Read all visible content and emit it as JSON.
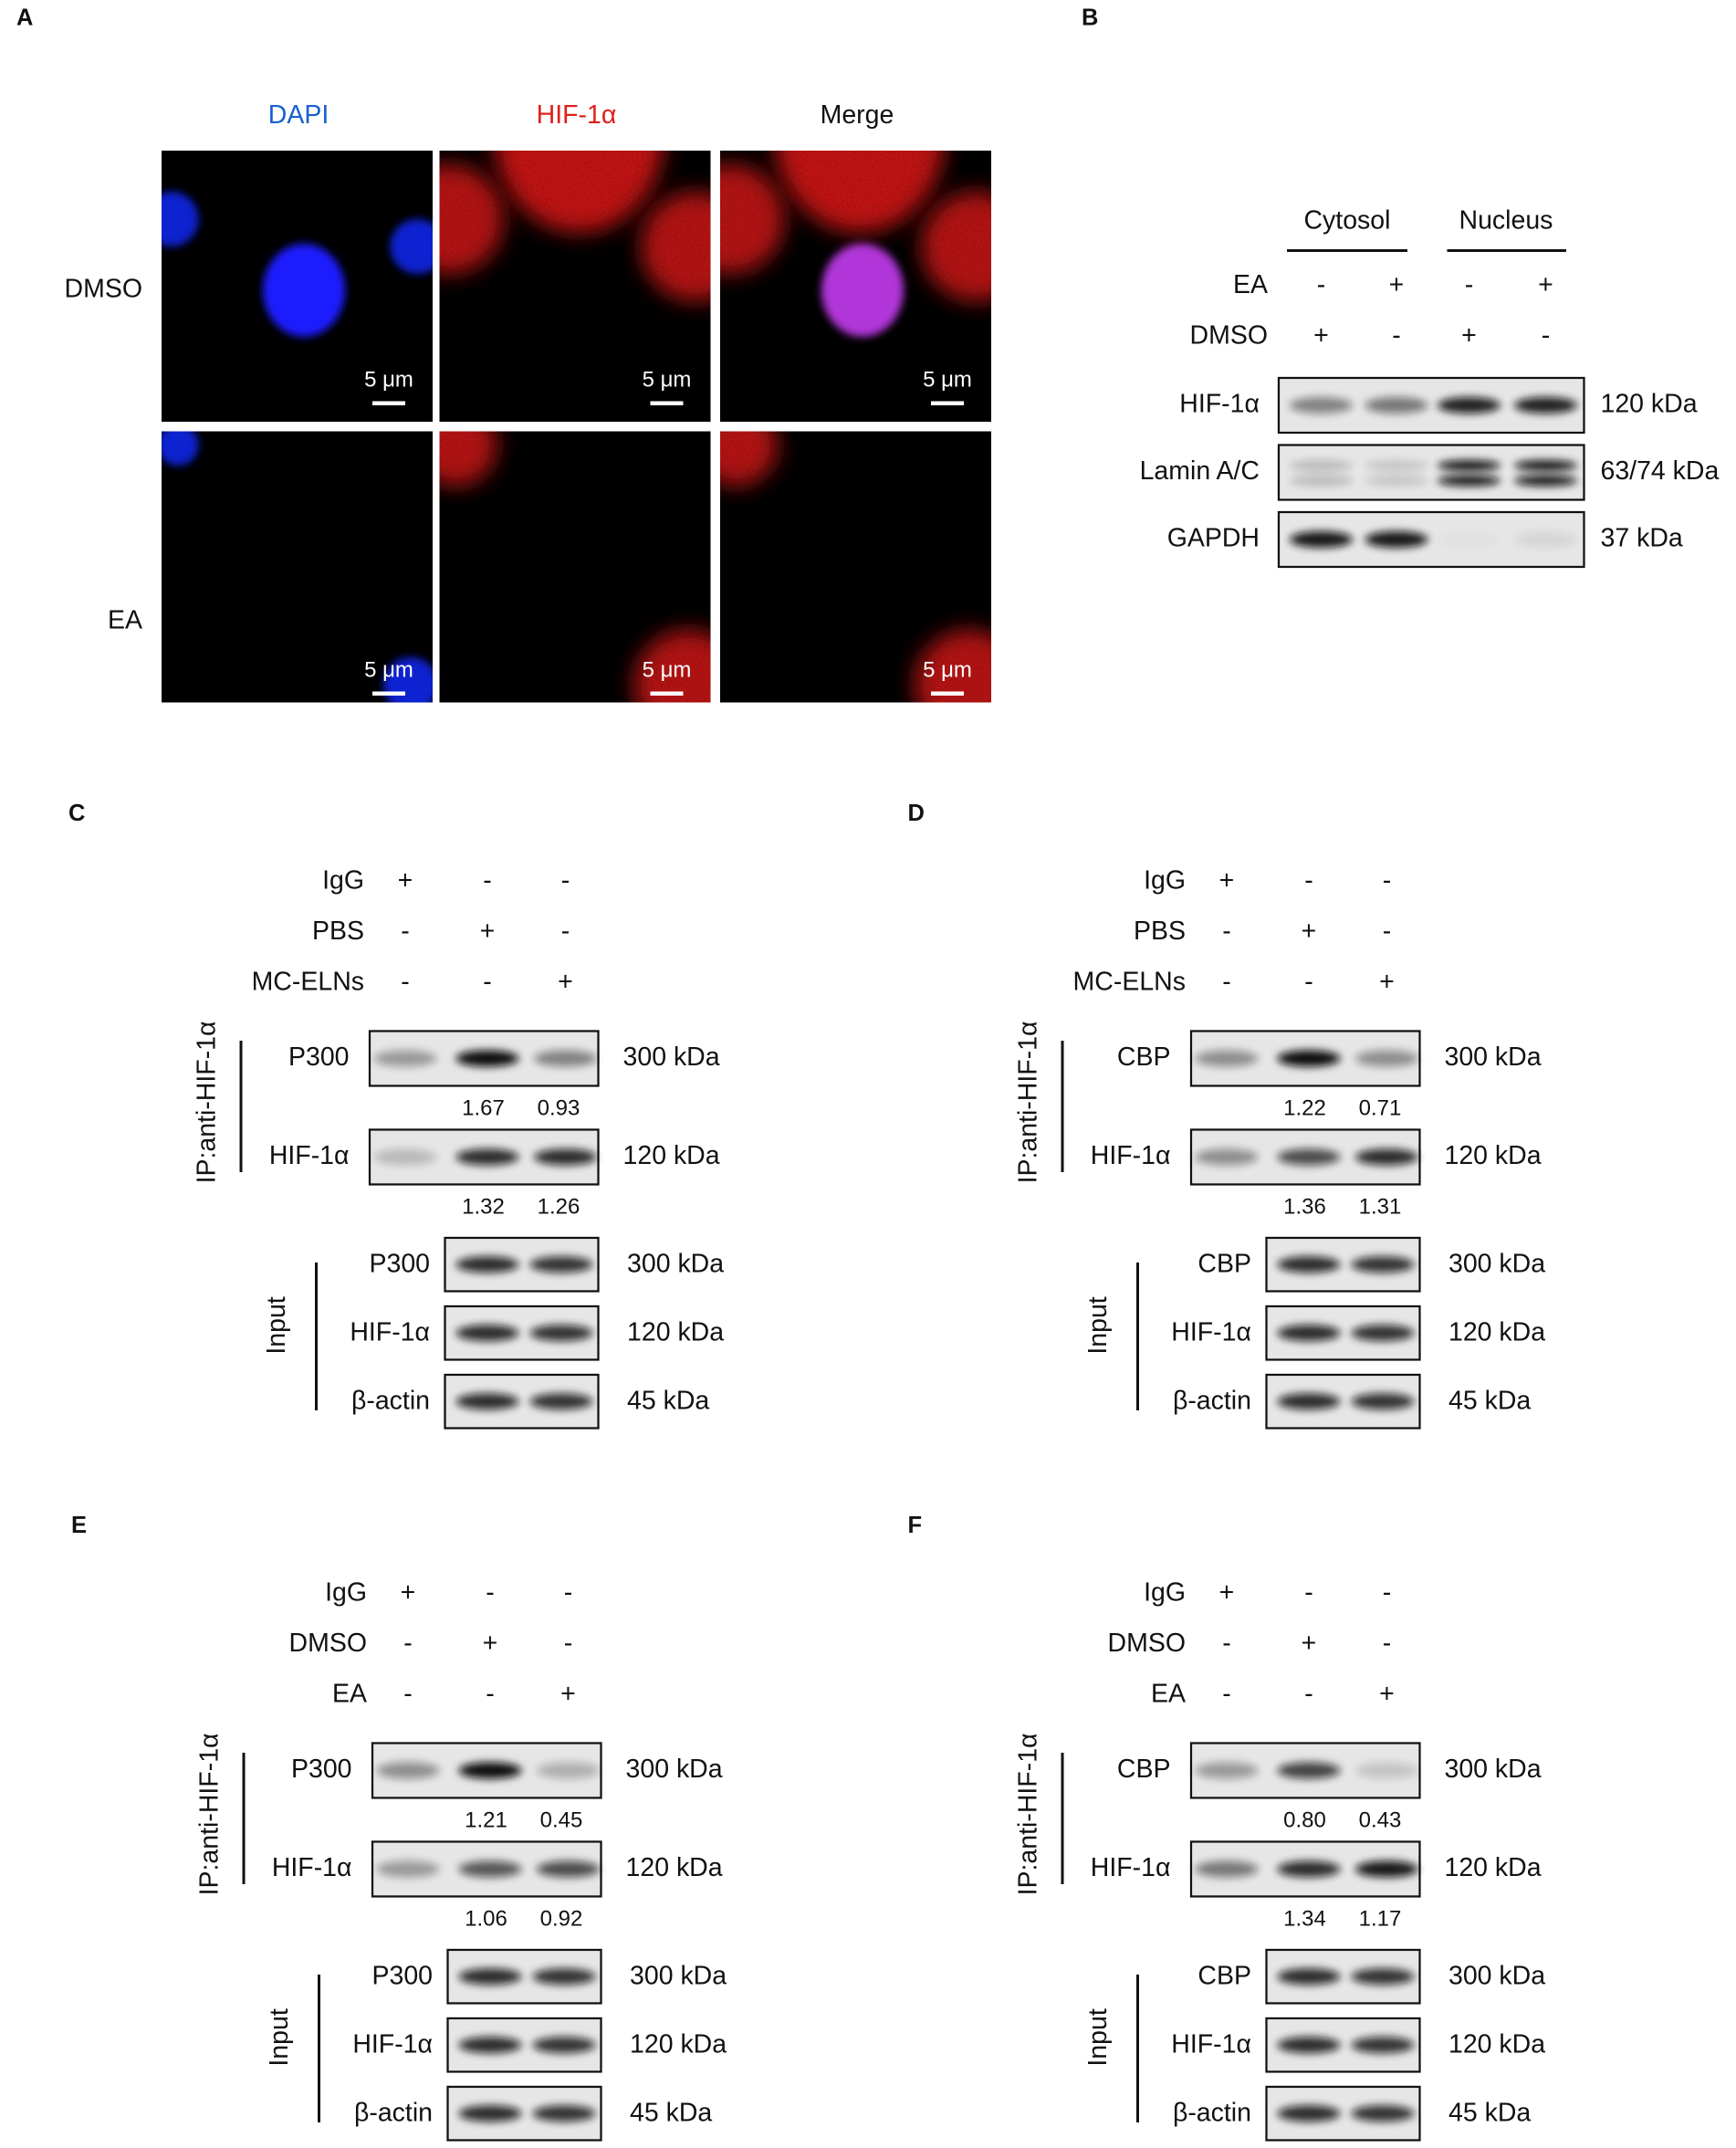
{
  "panels": {
    "A": {
      "label": "A",
      "columns": [
        "DAPI",
        "HIF-1α",
        "Merge"
      ],
      "rows": [
        "DMSO",
        "EA"
      ],
      "scale_bar": "5 μm"
    },
    "B": {
      "label": "B",
      "groups": [
        "Cytosol",
        "Nucleus"
      ],
      "conditions": [
        {
          "name": "EA",
          "signs": [
            "-",
            "+",
            "-",
            "+"
          ]
        },
        {
          "name": "DMSO",
          "signs": [
            "+",
            "-",
            "+",
            "-"
          ]
        }
      ],
      "blots": [
        {
          "name": "HIF-1α",
          "size": "120 kDa"
        },
        {
          "name": "Lamin A/C",
          "size": "63/74 kDa"
        },
        {
          "name": "GAPDH",
          "size": "37 kDa"
        }
      ]
    },
    "C": {
      "label": "C",
      "conditions": [
        {
          "name": "IgG",
          "signs": [
            "+",
            "-",
            "-"
          ]
        },
        {
          "name": "PBS",
          "signs": [
            "-",
            "+",
            "-"
          ]
        },
        {
          "name": "MC-ELNs",
          "signs": [
            "-",
            "-",
            "+"
          ]
        }
      ],
      "ip_label": "IP:anti-HIF-1α",
      "ip_blots": [
        {
          "name": "P300",
          "size": "300 kDa",
          "ratios": [
            "1.67",
            "0.93"
          ]
        },
        {
          "name": "HIF-1α",
          "size": "120 kDa",
          "ratios": [
            "1.32",
            "1.26"
          ]
        }
      ],
      "input_label": "Input",
      "input_blots": [
        {
          "name": "P300",
          "size": "300 kDa"
        },
        {
          "name": "HIF-1α",
          "size": "120 kDa"
        },
        {
          "name": "β-actin",
          "size": "45 kDa"
        }
      ]
    },
    "D": {
      "label": "D",
      "conditions": [
        {
          "name": "IgG",
          "signs": [
            "+",
            "-",
            "-"
          ]
        },
        {
          "name": "PBS",
          "signs": [
            "-",
            "+",
            "-"
          ]
        },
        {
          "name": "MC-ELNs",
          "signs": [
            "-",
            "-",
            "+"
          ]
        }
      ],
      "ip_label": "IP:anti-HIF-1α",
      "ip_blots": [
        {
          "name": "CBP",
          "size": "300 kDa",
          "ratios": [
            "1.22",
            "0.71"
          ]
        },
        {
          "name": "HIF-1α",
          "size": "120 kDa",
          "ratios": [
            "1.36",
            "1.31"
          ]
        }
      ],
      "input_label": "Input",
      "input_blots": [
        {
          "name": "CBP",
          "size": "300 kDa"
        },
        {
          "name": "HIF-1α",
          "size": "120 kDa"
        },
        {
          "name": "β-actin",
          "size": "45 kDa"
        }
      ]
    },
    "E": {
      "label": "E",
      "conditions": [
        {
          "name": "IgG",
          "signs": [
            "+",
            "-",
            "-"
          ]
        },
        {
          "name": "DMSO",
          "signs": [
            "-",
            "+",
            "-"
          ]
        },
        {
          "name": "EA",
          "signs": [
            "-",
            "-",
            "+"
          ]
        }
      ],
      "ip_label": "IP:anti-HIF-1α",
      "ip_blots": [
        {
          "name": "P300",
          "size": "300 kDa",
          "ratios": [
            "1.21",
            "0.45"
          ]
        },
        {
          "name": "HIF-1α",
          "size": "120 kDa",
          "ratios": [
            "1.06",
            "0.92"
          ]
        }
      ],
      "input_label": "Input",
      "input_blots": [
        {
          "name": "P300",
          "size": "300 kDa"
        },
        {
          "name": "HIF-1α",
          "size": "120 kDa"
        },
        {
          "name": "β-actin",
          "size": "45 kDa"
        }
      ]
    },
    "F": {
      "label": "F",
      "conditions": [
        {
          "name": "IgG",
          "signs": [
            "+",
            "-",
            "-"
          ]
        },
        {
          "name": "DMSO",
          "signs": [
            "-",
            "+",
            "-"
          ]
        },
        {
          "name": "EA",
          "signs": [
            "-",
            "-",
            "+"
          ]
        }
      ],
      "ip_label": "IP:anti-HIF-1α",
      "ip_blots": [
        {
          "name": "CBP",
          "size": "300 kDa",
          "ratios": [
            "0.80",
            "0.43"
          ]
        },
        {
          "name": "HIF-1α",
          "size": "120 kDa",
          "ratios": [
            "1.34",
            "1.17"
          ]
        }
      ],
      "input_label": "Input",
      "input_blots": [
        {
          "name": "CBP",
          "size": "300 kDa"
        },
        {
          "name": "HIF-1α",
          "size": "120 kDa"
        },
        {
          "name": "β-actin",
          "size": "45 kDa"
        }
      ]
    }
  }
}
